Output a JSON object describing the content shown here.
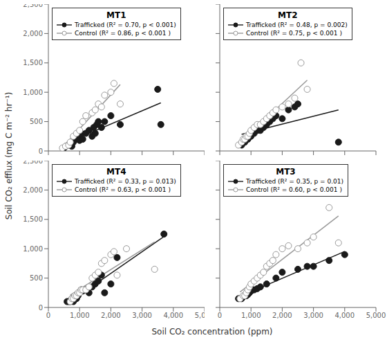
{
  "xlabel": "Soil CO₂ concentration (ppm)",
  "ylabel": "Soil CO₂ efflux (mg C m⁻² hr⁻¹)",
  "chart_data": [
    {
      "type": "scatter",
      "title": "MT1",
      "legend": "upper left",
      "tick_labels": "y",
      "xlim": [
        0,
        5000
      ],
      "ylim": [
        0,
        2500
      ],
      "xticks": [
        0,
        {
          "value": 1000,
          "label": "1,000"
        },
        {
          "value": 2000,
          "label": "2,000"
        },
        {
          "value": 3000,
          "label": "3,000"
        },
        {
          "value": 4000,
          "label": "4,000"
        },
        {
          "value": 5000,
          "label": "5,000"
        }
      ],
      "yticks": [
        0,
        500,
        {
          "value": 1000,
          "label": "1,000"
        },
        {
          "value": 1500,
          "label": "1,500"
        },
        {
          "value": 2000,
          "label": "2,000"
        },
        {
          "value": 2500,
          "label": "2,500"
        }
      ],
      "series": [
        {
          "type": "line",
          "color": "#1a1a1a",
          "line_style": "solid",
          "x": [
            500,
            3600
          ],
          "values": [
            119.82,
            819.49
          ]
        },
        {
          "type": "line",
          "color": "#999999",
          "line_style": "solid",
          "x": [
            450,
            2300
          ],
          "values": [
            60.02,
            1130.62
          ]
        },
        {
          "type": "scatter",
          "name": "Trafficked (R² = 0.70, p < 0.001)",
          "color": "#1a1a1a",
          "marker": "circle",
          "x": [
            500,
            650,
            750,
            800,
            850,
            900,
            950,
            1000,
            1050,
            1100,
            1200,
            1300,
            1400,
            1450,
            1500,
            1550,
            1600,
            1700,
            1800,
            2000,
            2300,
            3500,
            3600
          ],
          "values": [
            50,
            100,
            80,
            150,
            200,
            200,
            250,
            180,
            300,
            200,
            300,
            350,
            250,
            400,
            300,
            450,
            500,
            400,
            500,
            600,
            450,
            1050,
            450
          ]
        },
        {
          "type": "scatter",
          "name": "Control (R² = 0.86, p < 0.001 )",
          "color": "#999999",
          "marker": "open_circle",
          "x": [
            450,
            550,
            650,
            700,
            800,
            900,
            1000,
            1100,
            1200,
            1400,
            1500,
            1600,
            1700,
            1800,
            2000,
            2100,
            2300
          ],
          "values": [
            50,
            80,
            100,
            150,
            250,
            300,
            350,
            500,
            600,
            650,
            700,
            800,
            750,
            950,
            1000,
            1150,
            800
          ]
        }
      ]
    },
    {
      "type": "scatter",
      "title": "MT2",
      "legend": "upper left",
      "tick_labels": false,
      "xlim": [
        0,
        5000
      ],
      "ylim": [
        0,
        2500
      ],
      "xticks": [
        0,
        {
          "value": 1000,
          "label": "1,000"
        },
        {
          "value": 2000,
          "label": "2,000"
        },
        {
          "value": 3000,
          "label": "3,000"
        },
        {
          "value": 4000,
          "label": "4,000"
        },
        {
          "value": 5000,
          "label": "5,000"
        }
      ],
      "yticks": [
        0,
        500,
        {
          "value": 1000,
          "label": "1,000"
        },
        {
          "value": 1500,
          "label": "1,500"
        },
        {
          "value": 2000,
          "label": "2,000"
        },
        {
          "value": 2500,
          "label": "2,500"
        }
      ],
      "series": [
        {
          "type": "line",
          "color": "#1a1a1a",
          "line_style": "solid",
          "x": [
            700,
            3800
          ],
          "values": [
            282.92,
            697.77
          ]
        },
        {
          "type": "line",
          "color": "#999999",
          "line_style": "solid",
          "x": [
            600,
            2800
          ],
          "values": [
            114.03,
            1205.3
          ]
        },
        {
          "type": "scatter",
          "name": "Trafficked (R² = 0.48, p = 0.002)",
          "color": "#1a1a1a",
          "marker": "circle",
          "x": [
            700,
            800,
            850,
            900,
            950,
            1000,
            1050,
            1100,
            1200,
            1300,
            1400,
            1500,
            1600,
            1700,
            1800,
            2000,
            2200,
            2400,
            2500,
            3800
          ],
          "values": [
            100,
            150,
            200,
            200,
            250,
            250,
            300,
            300,
            350,
            350,
            400,
            450,
            500,
            550,
            600,
            550,
            700,
            750,
            800,
            150
          ]
        },
        {
          "type": "scatter",
          "name": "Control (R² = 0.75, p < 0.001 )",
          "color": "#999999",
          "marker": "open_circle",
          "x": [
            600,
            700,
            750,
            800,
            850,
            900,
            950,
            1000,
            1100,
            1200,
            1300,
            1400,
            1500,
            1600,
            1700,
            1800,
            2000,
            2200,
            2400,
            2600,
            2800
          ],
          "values": [
            100,
            150,
            200,
            200,
            250,
            250,
            300,
            350,
            400,
            450,
            450,
            500,
            550,
            600,
            650,
            700,
            750,
            800,
            900,
            1500,
            1050
          ]
        }
      ]
    },
    {
      "type": "scatter",
      "title": "MT4",
      "legend": "upper left",
      "xlim": [
        0,
        5000
      ],
      "ylim": [
        0,
        2500
      ],
      "xticks": [
        0,
        {
          "value": 1000,
          "label": "1,000"
        },
        {
          "value": 2000,
          "label": "2,000"
        },
        {
          "value": 3000,
          "label": "3,000"
        },
        {
          "value": 4000,
          "label": "4,000"
        },
        {
          "value": 5000,
          "label": "5,000"
        }
      ],
      "yticks": [
        0,
        500,
        {
          "value": 1000,
          "label": "1,000"
        },
        {
          "value": 1500,
          "label": "1,500"
        },
        {
          "value": 2000,
          "label": "2,000"
        },
        {
          "value": 2500,
          "label": "2,500"
        }
      ],
      "series": [
        {
          "type": "line",
          "color": "#1a1a1a",
          "line_style": "solid",
          "x": [
            600,
            3700
          ],
          "values": [
            63.87,
            1207.42
          ]
        },
        {
          "type": "line",
          "color": "#999999",
          "line_style": "solid",
          "x": [
            700,
            3400
          ],
          "values": [
            209.24,
            1115.82
          ]
        },
        {
          "type": "scatter",
          "name": "Trafficked (R² = 0.33, p = 0.013)",
          "color": "#1a1a1a",
          "marker": "circle",
          "x": [
            600,
            650,
            700,
            750,
            800,
            850,
            900,
            950,
            1000,
            1050,
            1100,
            1200,
            1300,
            1400,
            1500,
            1600,
            1700,
            1800,
            2000,
            2200,
            3700
          ],
          "values": [
            100,
            100,
            100,
            150,
            100,
            150,
            150,
            200,
            250,
            300,
            280,
            300,
            250,
            350,
            400,
            450,
            550,
            250,
            400,
            850,
            1250
          ]
        },
        {
          "type": "scatter",
          "name": "Control (R² = 0.63, p < 0.001 )",
          "color": "#999999",
          "marker": "open_circle",
          "x": [
            700,
            750,
            800,
            850,
            900,
            950,
            1000,
            1050,
            1100,
            1200,
            1300,
            1400,
            1500,
            1600,
            1700,
            1800,
            2000,
            2100,
            2200,
            2500,
            3400
          ],
          "values": [
            100,
            150,
            150,
            200,
            200,
            250,
            250,
            300,
            300,
            300,
            350,
            500,
            550,
            600,
            750,
            800,
            900,
            950,
            550,
            1000,
            650
          ]
        }
      ]
    },
    {
      "type": "scatter",
      "title": "MT3",
      "legend": "upper left",
      "tick_labels": "x",
      "xlim": [
        0,
        5000
      ],
      "ylim": [
        0,
        2500
      ],
      "xticks": [
        0,
        {
          "value": 1000,
          "label": "1,000"
        },
        {
          "value": 2000,
          "label": "2,000"
        },
        {
          "value": 3000,
          "label": "3,000"
        },
        {
          "value": 4000,
          "label": "4,000"
        },
        {
          "value": 5000,
          "label": "5,000"
        }
      ],
      "yticks": [
        0,
        500,
        {
          "value": 1000,
          "label": "1,000"
        },
        {
          "value": 1500,
          "label": "1,500"
        },
        {
          "value": 2000,
          "label": "2,000"
        },
        {
          "value": 2500,
          "label": "2,500"
        }
      ],
      "series": [
        {
          "type": "line",
          "color": "#1a1a1a",
          "line_style": "solid",
          "x": [
            600,
            4000
          ],
          "values": [
            175.33,
            953.04
          ]
        },
        {
          "type": "line",
          "color": "#999999",
          "line_style": "solid",
          "x": [
            650,
            3800
          ],
          "values": [
            263.47,
            1558.21
          ]
        },
        {
          "type": "scatter",
          "name": "Trafficked (R² = 0.35, p = 0.01)",
          "color": "#1a1a1a",
          "marker": "circle",
          "x": [
            600,
            700,
            750,
            800,
            850,
            900,
            950,
            1000,
            1050,
            1100,
            1200,
            1300,
            1500,
            1800,
            2000,
            2500,
            2800,
            3000,
            3500,
            4000
          ],
          "values": [
            150,
            150,
            180,
            200,
            200,
            220,
            250,
            280,
            300,
            300,
            320,
            350,
            400,
            500,
            600,
            650,
            700,
            700,
            800,
            900
          ]
        },
        {
          "type": "scatter",
          "name": "Control (R² = 0.60, p < 0.001 )",
          "color": "#999999",
          "marker": "open_circle",
          "x": [
            650,
            750,
            800,
            850,
            900,
            950,
            1000,
            1100,
            1200,
            1300,
            1400,
            1500,
            1600,
            1700,
            1800,
            2000,
            2200,
            2500,
            2800,
            3000,
            3500,
            3800
          ],
          "values": [
            150,
            200,
            200,
            250,
            300,
            350,
            400,
            450,
            500,
            550,
            600,
            700,
            750,
            800,
            900,
            1000,
            1050,
            1000,
            1100,
            1200,
            1700,
            1100
          ]
        }
      ]
    }
  ]
}
